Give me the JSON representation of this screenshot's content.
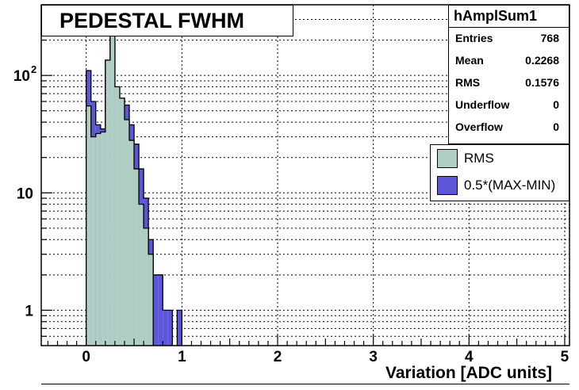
{
  "title": "PEDESTAL FWHM",
  "stats": {
    "name": "hAmplSum1",
    "rows": [
      {
        "label": "Entries",
        "value": "768"
      },
      {
        "label": "Mean",
        "value": "0.2268"
      },
      {
        "label": "RMS",
        "value": "0.1576"
      },
      {
        "label": "Underflow",
        "value": "0"
      },
      {
        "label": "Overflow",
        "value": "0"
      }
    ]
  },
  "legend": [
    {
      "label": "RMS",
      "color": "#b0cfc4"
    },
    {
      "label": "0.5*(MAX-MIN)",
      "color": "#5b57d6"
    }
  ],
  "chart_data": {
    "type": "bar",
    "title": "PEDESTAL FWHM",
    "xlabel": "Variation [ADC units]",
    "ylabel": "",
    "xlim": [
      -0.47,
      5.05
    ],
    "ylim": [
      0.5,
      400
    ],
    "yscale": "log",
    "grid": true,
    "legend_position": "right",
    "x_ticks": [
      0,
      1,
      2,
      3,
      4,
      5
    ],
    "y_ticks": [
      {
        "value": 1,
        "label": "1"
      },
      {
        "value": 10,
        "label": "10"
      },
      {
        "value": 100,
        "label": "10^2"
      }
    ],
    "bin_width": 0.05,
    "series": [
      {
        "name": "0.5*(MAX-MIN)",
        "color": "#5b57d6",
        "bins": [
          {
            "x": 0.0,
            "y": 110
          },
          {
            "x": 0.05,
            "y": 60
          },
          {
            "x": 0.1,
            "y": 38
          },
          {
            "x": 0.15,
            "y": 35
          },
          {
            "x": 0.2,
            "y": 135
          },
          {
            "x": 0.25,
            "y": 330
          },
          {
            "x": 0.3,
            "y": 80
          },
          {
            "x": 0.35,
            "y": 64
          },
          {
            "x": 0.4,
            "y": 56
          },
          {
            "x": 0.45,
            "y": 38
          },
          {
            "x": 0.5,
            "y": 26
          },
          {
            "x": 0.55,
            "y": 16
          },
          {
            "x": 0.6,
            "y": 9
          },
          {
            "x": 0.65,
            "y": 4
          },
          {
            "x": 0.7,
            "y": 2
          },
          {
            "x": 0.75,
            "y": 2
          },
          {
            "x": 0.8,
            "y": 1
          },
          {
            "x": 0.85,
            "y": 1
          },
          {
            "x": 0.95,
            "y": 1
          }
        ]
      },
      {
        "name": "RMS",
        "color": "#b0cfc4",
        "bins": [
          {
            "x": 0.0,
            "y": 55
          },
          {
            "x": 0.05,
            "y": 30
          },
          {
            "x": 0.1,
            "y": 32
          },
          {
            "x": 0.15,
            "y": 33
          },
          {
            "x": 0.2,
            "y": 135
          },
          {
            "x": 0.25,
            "y": 330
          },
          {
            "x": 0.3,
            "y": 80
          },
          {
            "x": 0.35,
            "y": 64
          },
          {
            "x": 0.4,
            "y": 42
          },
          {
            "x": 0.45,
            "y": 28
          },
          {
            "x": 0.5,
            "y": 16
          },
          {
            "x": 0.55,
            "y": 8
          },
          {
            "x": 0.6,
            "y": 5
          },
          {
            "x": 0.65,
            "y": 3
          }
        ]
      }
    ]
  }
}
